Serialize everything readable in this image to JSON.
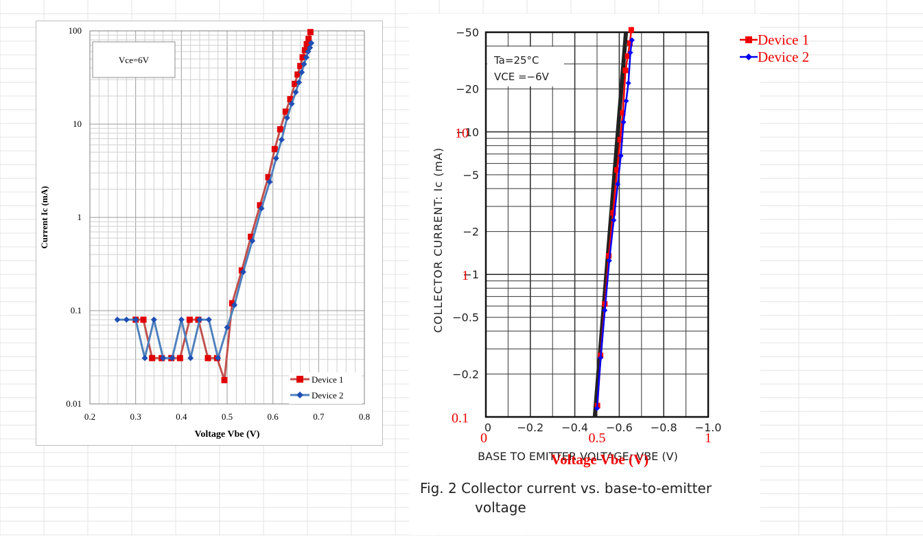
{
  "left_chart": {
    "annotation": "Vce=6V",
    "xlabel": "Voltage Vbe (V)",
    "ylabel": "Current  Ic (mA)",
    "x_ticks": [
      "0.2",
      "0.3",
      "0.4",
      "0.5",
      "0.6",
      "0.7",
      "0.8"
    ],
    "y_ticks": [
      "0.01",
      "0.1",
      "1",
      "10",
      "100"
    ],
    "legend": [
      "Device 1",
      "Device 2"
    ]
  },
  "right_chart": {
    "box_label_ta": "Ta=25°C",
    "box_label_vce": "VCE =−6V",
    "ylabel": "COLLECTOR CURRENT: Ic (mA)",
    "xlabel_scan": "BASE TO EMITTER VOLTAGE: VBE (V)",
    "xlabel_overlay": "Voltage Vbe (V)",
    "scan_x_ticks": [
      "0",
      "−0.2",
      "−0.4",
      "−0.6",
      "−0.8",
      "−1.0"
    ],
    "scan_y_ticks": [
      "−50",
      "−20",
      "−10",
      "−5",
      "−2",
      "−1",
      "−0.5",
      "−0.2"
    ],
    "overlay_x_ticks": [
      "0",
      "0.5",
      "1"
    ],
    "overlay_y_ticks": [
      "0.1",
      "1",
      "10"
    ],
    "caption_line1": "Fig. 2  Collector current vs. base-to-emitter",
    "caption_line2": "voltage",
    "legend": [
      "Device 1",
      "Device 2"
    ]
  },
  "chart_data": [
    {
      "type": "line",
      "title": "",
      "xlabel": "Voltage Vbe (V)",
      "ylabel": "Current  Ic (mA)",
      "xlim": [
        0.2,
        0.8
      ],
      "ylim": [
        0.01,
        100
      ],
      "y_scale": "log",
      "grid": true,
      "legend_position": "bottom-right",
      "annotation": "Vce=6V",
      "series": [
        {
          "name": "Device 1",
          "color": "#c0504d",
          "marker": "square",
          "x": [
            0.3,
            0.317,
            0.336,
            0.357,
            0.378,
            0.397,
            0.418,
            0.437,
            0.458,
            0.478,
            0.494,
            0.511,
            0.532,
            0.552,
            0.572,
            0.59,
            0.604,
            0.616,
            0.628,
            0.638,
            0.648,
            0.654,
            0.66,
            0.665,
            0.67,
            0.674,
            0.678,
            0.682
          ],
          "values": [
            0.08,
            0.08,
            0.031,
            0.031,
            0.031,
            0.031,
            0.08,
            0.08,
            0.031,
            0.031,
            0.018,
            0.12,
            0.27,
            0.62,
            1.35,
            2.7,
            5.4,
            8.8,
            13.6,
            18.5,
            27,
            34,
            42,
            52,
            62,
            72,
            82,
            97
          ]
        },
        {
          "name": "Device 2",
          "color": "#4f81bd",
          "marker": "diamond",
          "x": [
            0.26,
            0.28,
            0.3,
            0.32,
            0.34,
            0.36,
            0.38,
            0.4,
            0.42,
            0.44,
            0.46,
            0.48,
            0.5,
            0.516,
            0.535,
            0.555,
            0.575,
            0.593,
            0.607,
            0.619,
            0.631,
            0.641,
            0.65,
            0.657,
            0.663,
            0.668,
            0.673,
            0.677,
            0.681,
            0.684
          ],
          "values": [
            0.08,
            0.08,
            0.08,
            0.031,
            0.08,
            0.031,
            0.031,
            0.08,
            0.031,
            0.08,
            0.08,
            0.031,
            0.066,
            0.115,
            0.26,
            0.56,
            1.25,
            2.4,
            4.3,
            6.8,
            11.7,
            16.5,
            22,
            28,
            36,
            44,
            52,
            60,
            66,
            74
          ]
        }
      ]
    },
    {
      "type": "line",
      "title": "Fig. 2  Collector current vs. base-to-emitter voltage",
      "xlabel": "Voltage Vbe (V)",
      "ylabel": "COLLECTOR CURRENT: Ic (mA)",
      "xlim": [
        0,
        1
      ],
      "ylim": [
        0.1,
        50
      ],
      "y_scale": "log",
      "grid": true,
      "legend_position": "top-right, outside",
      "annotations": [
        "Ta=25°C",
        "VCE =−6V"
      ],
      "series": [
        {
          "name": "Device 1",
          "color": "#ff0000",
          "marker": "square",
          "x": [
            0.502,
            0.516,
            0.535,
            0.553,
            0.572,
            0.59,
            0.604,
            0.616,
            0.628,
            0.638,
            0.648,
            0.654
          ],
          "values": [
            0.12,
            0.27,
            0.62,
            1.35,
            2.7,
            5.4,
            8.8,
            13.6,
            27,
            34,
            42,
            52
          ]
        },
        {
          "name": "Device 2",
          "color": "#0000ff",
          "marker": "diamond",
          "x": [
            0.5,
            0.516,
            0.535,
            0.555,
            0.575,
            0.593,
            0.607,
            0.619,
            0.631,
            0.641,
            0.65,
            0.657
          ],
          "values": [
            0.115,
            0.26,
            0.56,
            1.25,
            2.4,
            4.3,
            6.8,
            11.7,
            16.5,
            22,
            36,
            44
          ]
        }
      ]
    }
  ]
}
